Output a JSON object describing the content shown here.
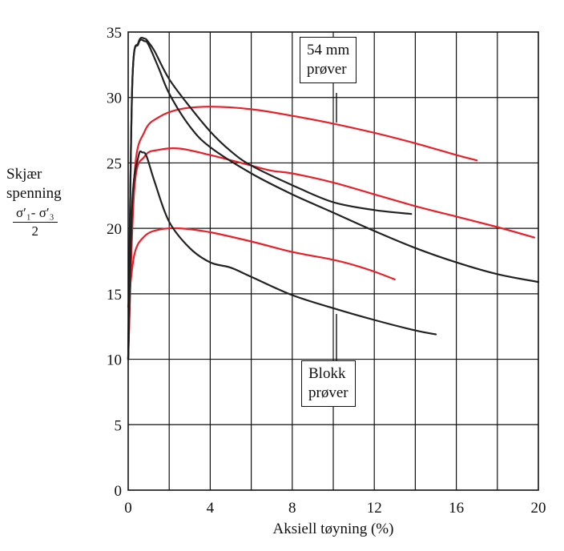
{
  "chart_data": {
    "type": "line",
    "xlabel": "Aksiell tøyning (%)",
    "ylabel_lines": [
      "Skjær",
      "spenning"
    ],
    "ylabel_formula_numerator": "σ′₁- σ′₃",
    "ylabel_formula_denominator": "2",
    "xlim": [
      0,
      20
    ],
    "ylim": [
      0,
      35
    ],
    "xticks": [
      "0",
      "4",
      "8",
      "12",
      "16",
      "20"
    ],
    "yticks": [
      "0",
      "5",
      "10",
      "15",
      "20",
      "25",
      "30",
      "35"
    ],
    "grid": true,
    "grid_x_step": 2,
    "grid_y_step": 5,
    "annotations": [
      {
        "lines": [
          "54 mm",
          "prøver"
        ],
        "points_to": "red curves",
        "color": "#111111"
      },
      {
        "lines": [
          "Blokk",
          "prøver"
        ],
        "points_to": "black curves",
        "color": "#111111"
      }
    ],
    "series": [
      {
        "group": "54 mm prøver",
        "color": "#e8202a",
        "x": [
          0,
          0.3,
          0.8,
          1.5,
          2.5,
          4,
          6,
          8,
          10,
          12,
          14,
          16,
          17
        ],
        "y": [
          10,
          24,
          27.4,
          28.5,
          29.1,
          29.3,
          29.1,
          28.6,
          28.0,
          27.3,
          26.5,
          25.6,
          25.2
        ]
      },
      {
        "group": "54 mm prøver",
        "color": "#e8202a",
        "x": [
          0,
          0.3,
          0.8,
          1.5,
          2.5,
          4,
          6,
          7,
          8,
          10,
          12,
          14,
          16,
          18,
          19.8
        ],
        "y": [
          10,
          23,
          25.5,
          26.0,
          26.1,
          25.6,
          24.8,
          24.4,
          24.2,
          23.5,
          22.6,
          21.7,
          20.9,
          20.1,
          19.3
        ]
      },
      {
        "group": "54 mm prøver",
        "color": "#e8202a",
        "x": [
          0,
          0.3,
          0.8,
          1.5,
          2.5,
          4,
          6,
          8,
          10,
          11,
          12,
          13
        ],
        "y": [
          14,
          18,
          19.4,
          19.9,
          20.0,
          19.7,
          19.0,
          18.2,
          17.6,
          17.2,
          16.7,
          16.1
        ]
      },
      {
        "group": "Blokk prøver",
        "color": "#222222",
        "x": [
          0,
          0.2,
          0.5,
          0.8,
          1.0,
          1.3,
          2,
          3,
          4,
          5,
          6,
          8,
          10,
          12,
          13.8
        ],
        "y": [
          10,
          31,
          34.2,
          34.5,
          34.2,
          33.5,
          31.4,
          29.3,
          27.4,
          25.9,
          24.8,
          23.3,
          22.0,
          21.4,
          21.1
        ]
      },
      {
        "group": "Blokk prøver",
        "color": "#222222",
        "x": [
          0,
          0.2,
          0.5,
          0.8,
          1.0,
          1.5,
          2,
          3,
          4,
          6,
          8,
          10,
          12,
          14,
          16,
          18,
          20
        ],
        "y": [
          10,
          31,
          34.1,
          34.3,
          34.0,
          32.2,
          30.3,
          27.8,
          26.2,
          24.2,
          22.6,
          21.2,
          19.8,
          18.5,
          17.4,
          16.5,
          15.9
        ]
      },
      {
        "group": "Blokk prøver",
        "color": "#222222",
        "x": [
          0,
          0.2,
          0.5,
          0.7,
          0.9,
          1.3,
          2,
          3,
          4,
          5,
          6,
          8,
          10,
          12,
          14,
          15
        ],
        "y": [
          10,
          22,
          25.5,
          25.8,
          25.5,
          23.5,
          20.5,
          18.5,
          17.4,
          17.0,
          16.3,
          14.9,
          13.9,
          13.0,
          12.2,
          11.9
        ]
      }
    ]
  }
}
